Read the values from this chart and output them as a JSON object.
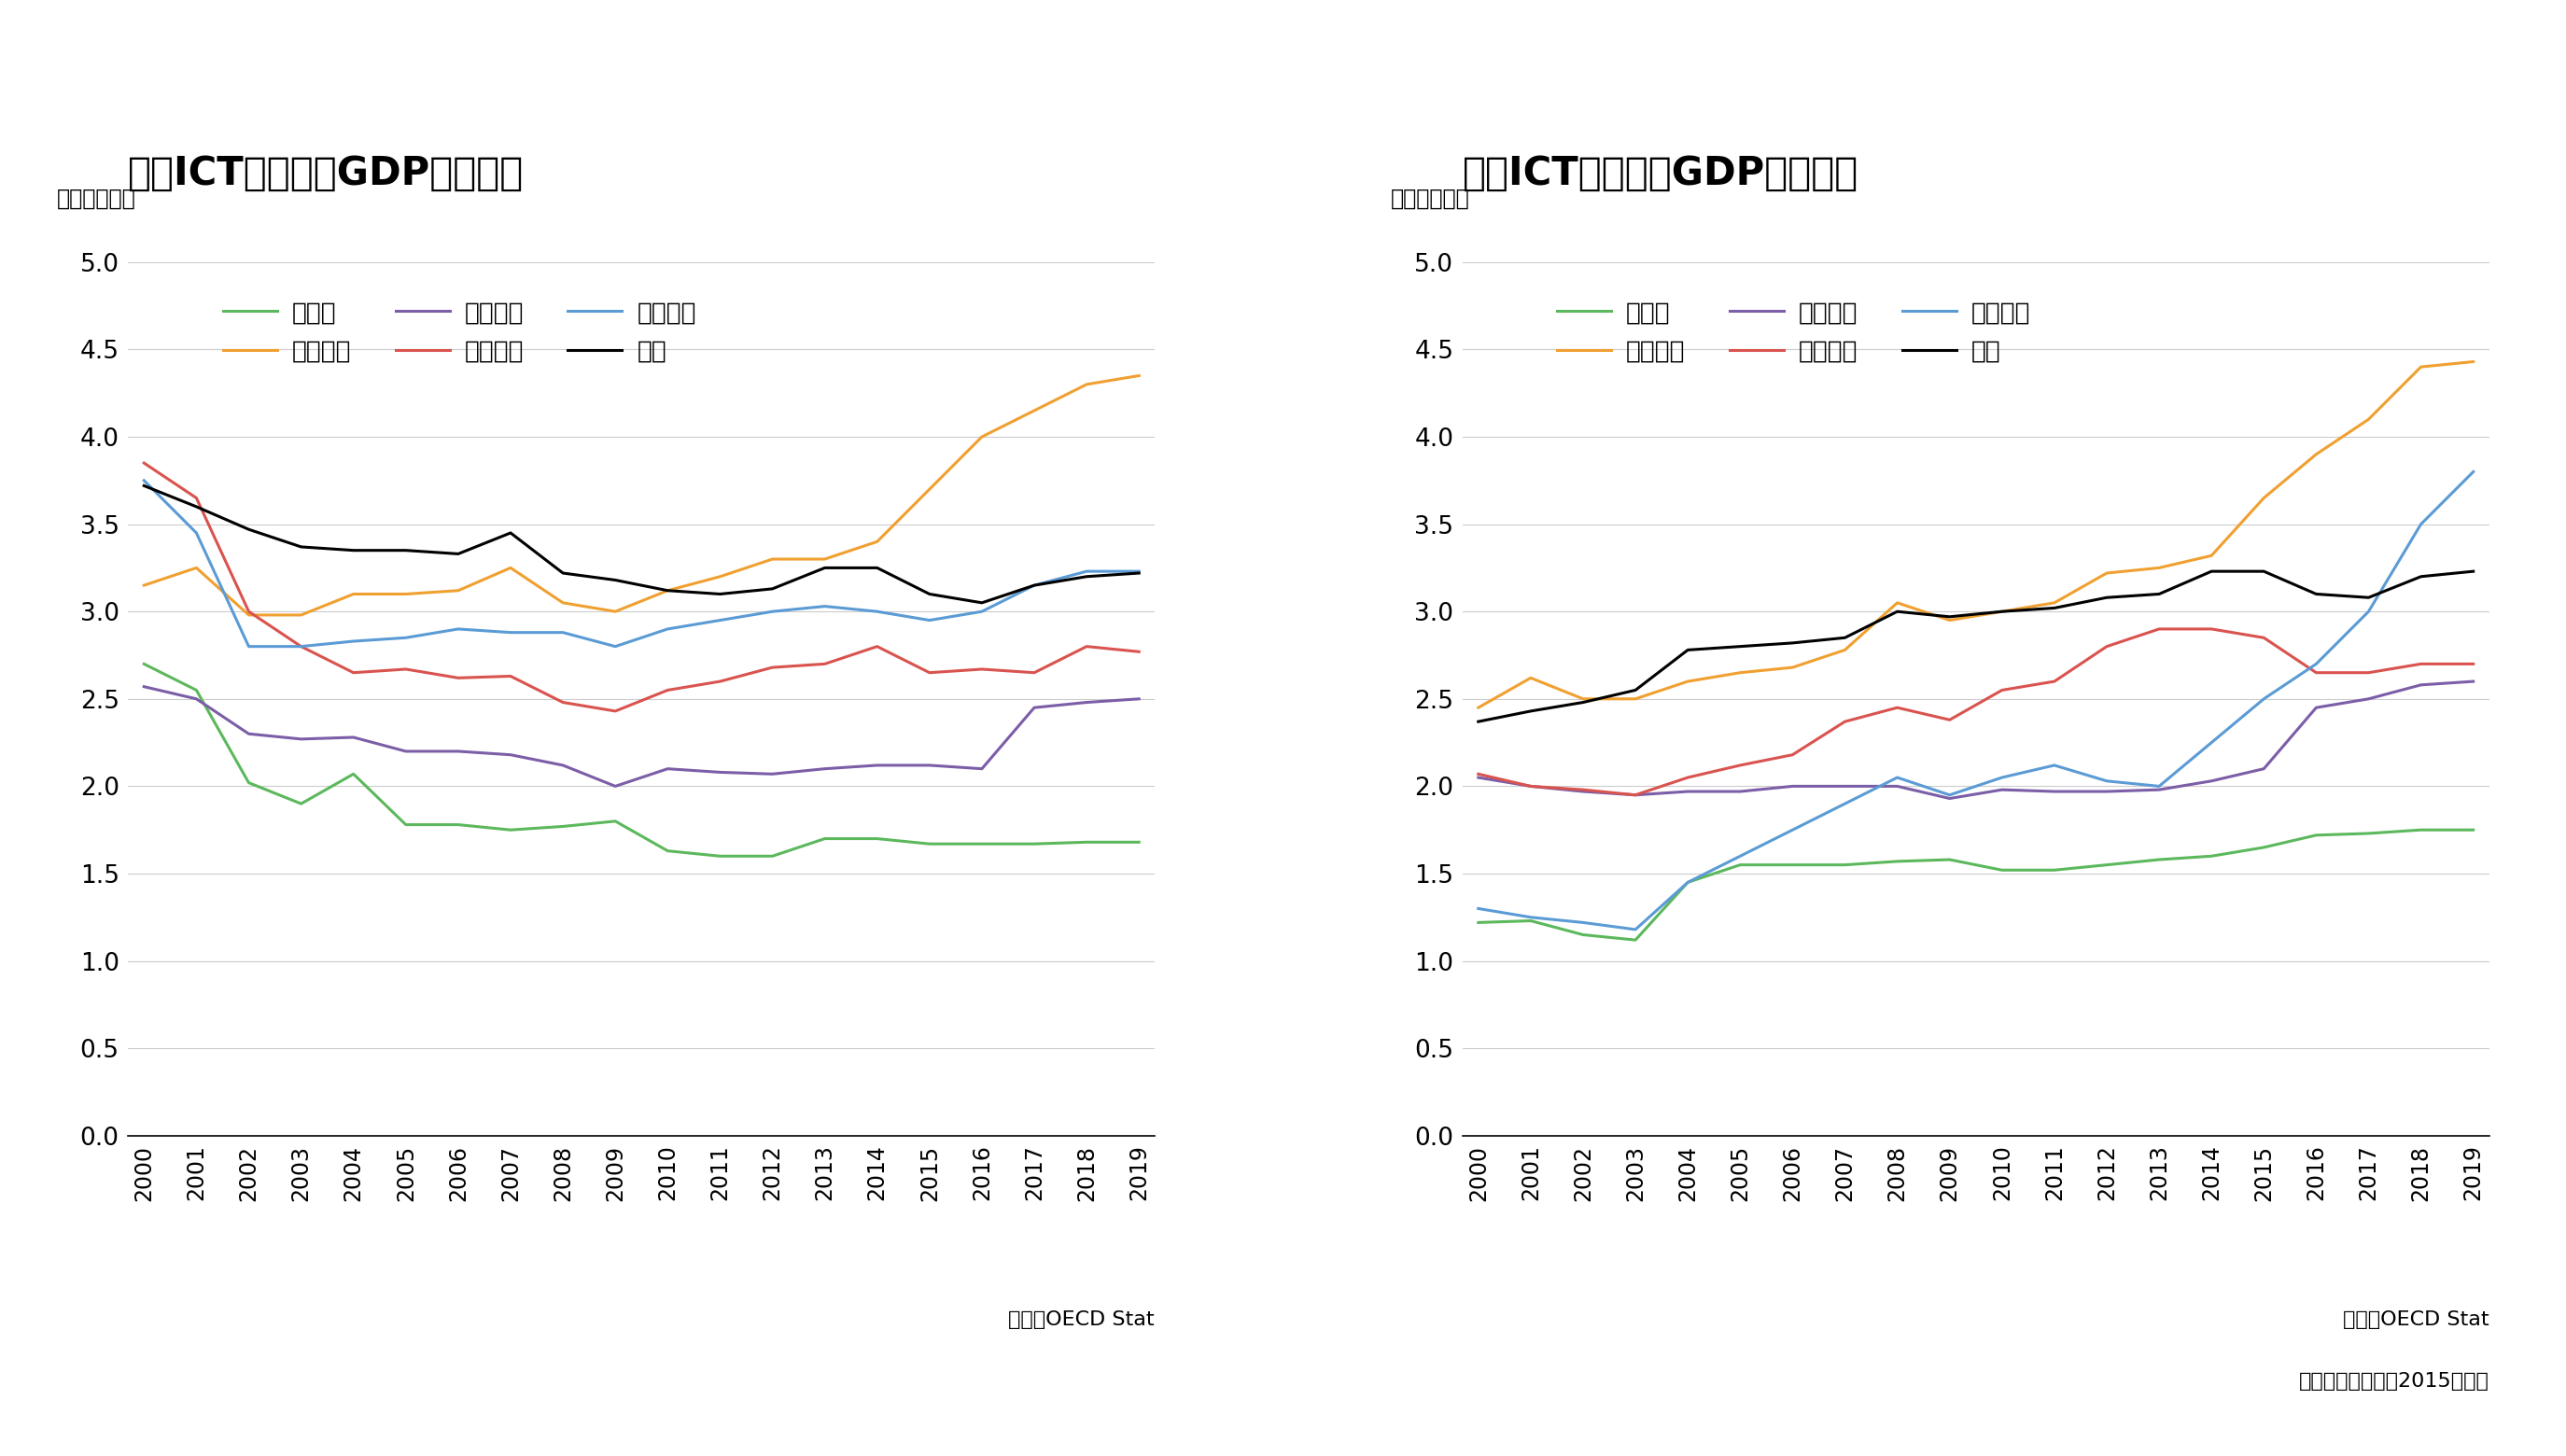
{
  "years": [
    2000,
    2001,
    2002,
    2003,
    2004,
    2005,
    2006,
    2007,
    2008,
    2009,
    2010,
    2011,
    2012,
    2013,
    2014,
    2015,
    2016,
    2017,
    2018,
    2019
  ],
  "nominal": {
    "germany": [
      2.7,
      2.55,
      2.02,
      1.9,
      2.07,
      1.78,
      1.78,
      1.75,
      1.77,
      1.8,
      1.63,
      1.6,
      1.6,
      1.7,
      1.7,
      1.67,
      1.67,
      1.67,
      1.68,
      1.68
    ],
    "france": [
      3.15,
      3.25,
      2.98,
      2.98,
      3.1,
      3.1,
      3.12,
      3.25,
      3.05,
      3.0,
      3.12,
      3.2,
      3.3,
      3.3,
      3.4,
      3.7,
      4.0,
      4.15,
      4.3,
      4.35
    ],
    "italy": [
      2.57,
      2.5,
      2.3,
      2.27,
      2.28,
      2.2,
      2.2,
      2.18,
      2.12,
      2.0,
      2.1,
      2.08,
      2.07,
      2.1,
      2.12,
      2.12,
      2.1,
      2.45,
      2.48,
      2.5
    ],
    "uk": [
      3.85,
      3.65,
      3.0,
      2.8,
      2.65,
      2.67,
      2.62,
      2.63,
      2.48,
      2.43,
      2.55,
      2.6,
      2.68,
      2.7,
      2.8,
      2.65,
      2.67,
      2.65,
      2.8,
      2.77
    ],
    "usa": [
      3.75,
      3.45,
      2.8,
      2.8,
      2.83,
      2.85,
      2.9,
      2.88,
      2.88,
      2.8,
      2.9,
      2.95,
      3.0,
      3.03,
      3.0,
      2.95,
      3.0,
      3.15,
      3.23,
      3.23
    ],
    "japan": [
      3.72,
      3.6,
      3.47,
      3.37,
      3.35,
      3.35,
      3.33,
      3.45,
      3.22,
      3.18,
      3.12,
      3.1,
      3.13,
      3.25,
      3.25,
      3.1,
      3.05,
      3.15,
      3.2,
      3.22
    ]
  },
  "real": {
    "germany": [
      1.22,
      1.23,
      1.15,
      1.12,
      1.45,
      1.55,
      1.55,
      1.55,
      1.57,
      1.58,
      1.52,
      1.52,
      1.55,
      1.58,
      1.6,
      1.65,
      1.72,
      1.73,
      1.75,
      1.75
    ],
    "france": [
      2.45,
      2.62,
      2.5,
      2.5,
      2.6,
      2.65,
      2.68,
      2.78,
      3.05,
      2.95,
      3.0,
      3.05,
      3.22,
      3.25,
      3.32,
      3.65,
      3.9,
      4.1,
      4.4,
      4.43
    ],
    "italy": [
      2.05,
      2.0,
      1.97,
      1.95,
      1.97,
      1.97,
      2.0,
      2.0,
      2.0,
      1.93,
      1.98,
      1.97,
      1.97,
      1.98,
      2.03,
      2.1,
      2.45,
      2.5,
      2.58,
      2.6
    ],
    "uk": [
      2.07,
      2.0,
      1.98,
      1.95,
      2.05,
      2.12,
      2.18,
      2.37,
      2.45,
      2.38,
      2.55,
      2.6,
      2.8,
      2.9,
      2.9,
      2.85,
      2.65,
      2.65,
      2.7,
      2.7
    ],
    "usa": [
      1.3,
      1.25,
      1.22,
      1.18,
      1.45,
      1.6,
      1.75,
      1.9,
      2.05,
      1.95,
      2.05,
      2.12,
      2.03,
      2.0,
      2.25,
      2.5,
      2.7,
      3.0,
      3.5,
      3.8
    ],
    "japan": [
      2.37,
      2.43,
      2.48,
      2.55,
      2.78,
      2.8,
      2.82,
      2.85,
      3.0,
      2.97,
      3.0,
      3.02,
      3.08,
      3.1,
      3.23,
      3.23,
      3.1,
      3.08,
      3.2,
      3.23
    ]
  },
  "colors": {
    "germany": "#5cb85c",
    "france": "#f0a030",
    "italy": "#7b5ea7",
    "uk": "#d9534f",
    "usa": "#5b9bd5",
    "japan": "#000000"
  },
  "label_germany": "ドイツ",
  "label_france": "フランス",
  "label_italy": "イタリア",
  "label_uk": "イギリス",
  "label_usa": "アメリカ",
  "label_japan": "日本",
  "title_nominal": "名目ICT投賈額／GDP比の推移",
  "title_real": "実質ICT投賈額／GDP比の推移",
  "unit_label": "（単位：％）",
  "source_label": "出典：OECD Stat",
  "note_label": "＊実質化は、全て2015年基準",
  "yticks": [
    0.0,
    0.5,
    1.0,
    1.5,
    2.0,
    2.5,
    3.0,
    3.5,
    4.0,
    4.5,
    5.0
  ]
}
